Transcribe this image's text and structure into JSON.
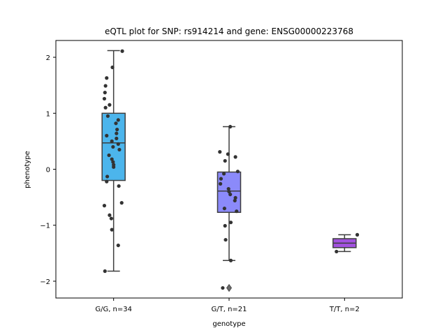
{
  "chart_data": {
    "type": "box",
    "title": "eQTL plot for SNP: rs914214 and gene: ENSG00000223768",
    "xlabel": "genotype",
    "ylabel": "phenotype",
    "ylim": [
      -2.3,
      2.3
    ],
    "yticks": [
      -2,
      -1,
      0,
      1,
      2
    ],
    "grid": false,
    "categories": [
      "G/G, n=34",
      "G/T, n=21",
      "T/T, n=2"
    ],
    "series": [
      {
        "color": "#4cb5ec",
        "box": {
          "whisker_low": -1.82,
          "q1": -0.2,
          "median": 0.47,
          "q3": 1.0,
          "whisker_high": 2.12
        },
        "outliers": [],
        "points": [
          {
            "dx": 0.15,
            "y": 2.11
          },
          {
            "dx": -0.02,
            "y": 1.82
          },
          {
            "dx": -0.12,
            "y": 1.63
          },
          {
            "dx": -0.14,
            "y": 1.49
          },
          {
            "dx": -0.15,
            "y": 1.37
          },
          {
            "dx": -0.16,
            "y": 1.26
          },
          {
            "dx": -0.14,
            "y": 1.1
          },
          {
            "dx": -0.07,
            "y": 1.15
          },
          {
            "dx": -0.1,
            "y": 0.95
          },
          {
            "dx": 0.08,
            "y": 0.88
          },
          {
            "dx": 0.04,
            "y": 0.82
          },
          {
            "dx": 0.06,
            "y": 0.71
          },
          {
            "dx": 0.05,
            "y": 0.64
          },
          {
            "dx": -0.12,
            "y": 0.6
          },
          {
            "dx": -0.03,
            "y": 0.5
          },
          {
            "dx": 0.08,
            "y": 0.45
          },
          {
            "dx": -0.01,
            "y": 0.4
          },
          {
            "dx": 0.1,
            "y": 0.35
          },
          {
            "dx": -0.03,
            "y": 0.18
          },
          {
            "dx": -0.01,
            "y": 0.13
          },
          {
            "dx": 0.0,
            "y": 0.08
          },
          {
            "dx": 0.0,
            "y": 0.04
          },
          {
            "dx": -0.11,
            "y": -0.13
          },
          {
            "dx": -0.12,
            "y": -0.22
          },
          {
            "dx": 0.09,
            "y": -0.3
          },
          {
            "dx": 0.14,
            "y": -0.6
          },
          {
            "dx": -0.16,
            "y": -0.65
          },
          {
            "dx": -0.07,
            "y": -0.82
          },
          {
            "dx": -0.04,
            "y": -0.88
          },
          {
            "dx": -0.03,
            "y": -1.08
          },
          {
            "dx": 0.08,
            "y": -1.36
          },
          {
            "dx": -0.15,
            "y": -1.82
          },
          {
            "dx": 0.05,
            "y": 0.55
          },
          {
            "dx": -0.08,
            "y": 0.25
          }
        ]
      },
      {
        "color": "#8b8afa",
        "box": {
          "whisker_low": -1.63,
          "q1": -0.77,
          "median": -0.39,
          "q3": -0.05,
          "whisker_high": 0.76
        },
        "outliers": [
          -2.12
        ],
        "points": [
          {
            "dx": 0.02,
            "y": 0.76
          },
          {
            "dx": -0.16,
            "y": 0.31
          },
          {
            "dx": -0.02,
            "y": 0.27
          },
          {
            "dx": 0.11,
            "y": 0.22
          },
          {
            "dx": -0.07,
            "y": 0.15
          },
          {
            "dx": 0.15,
            "y": -0.04
          },
          {
            "dx": -0.09,
            "y": -0.08
          },
          {
            "dx": -0.14,
            "y": -0.17
          },
          {
            "dx": -0.15,
            "y": -0.26
          },
          {
            "dx": -0.01,
            "y": -0.35
          },
          {
            "dx": 0.0,
            "y": -0.4
          },
          {
            "dx": 0.02,
            "y": -0.45
          },
          {
            "dx": 0.11,
            "y": -0.51
          },
          {
            "dx": 0.1,
            "y": -0.56
          },
          {
            "dx": -0.08,
            "y": -0.7
          },
          {
            "dx": 0.13,
            "y": -0.75
          },
          {
            "dx": 0.03,
            "y": -0.95
          },
          {
            "dx": -0.07,
            "y": -1.01
          },
          {
            "dx": -0.06,
            "y": -1.26
          },
          {
            "dx": 0.03,
            "y": -1.63
          },
          {
            "dx": -0.11,
            "y": -2.12
          }
        ]
      },
      {
        "color": "#a352e0",
        "box": {
          "whisker_low": -1.47,
          "q1": -1.4,
          "median": -1.32,
          "q3": -1.24,
          "whisker_high": -1.17
        },
        "outliers": [],
        "points": [
          {
            "dx": 0.22,
            "y": -1.17
          },
          {
            "dx": -0.14,
            "y": -1.47
          }
        ]
      }
    ]
  }
}
